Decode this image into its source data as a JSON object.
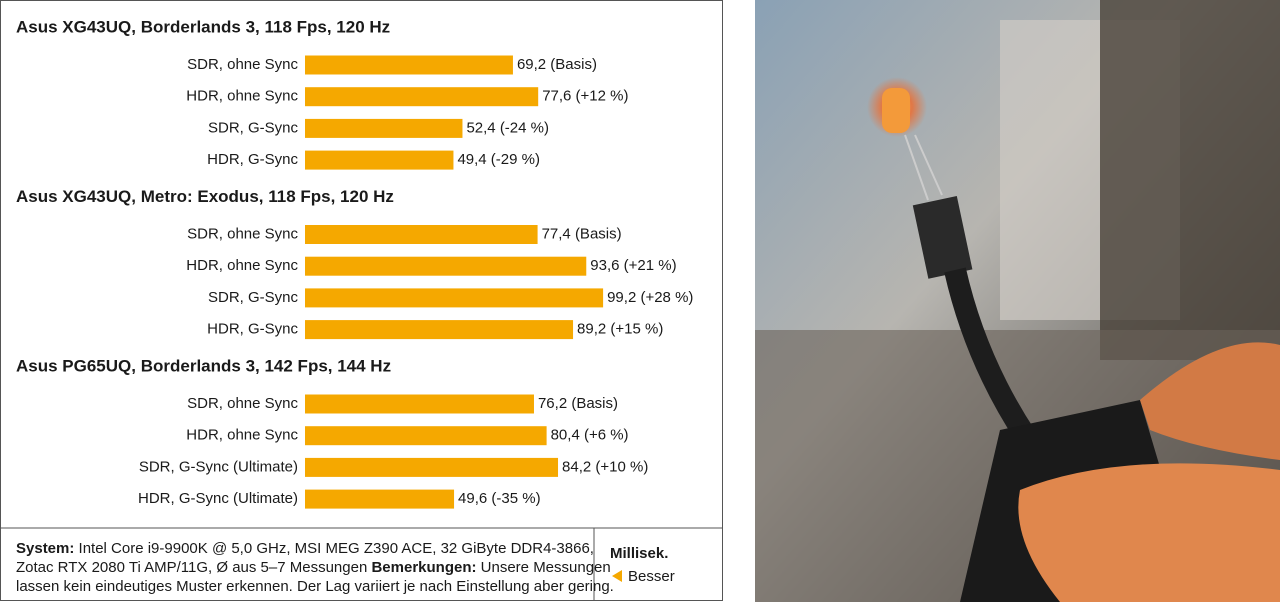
{
  "chart_data": [
    {
      "type": "bar",
      "title": "Asus XG43UQ, Borderlands 3, 118 Fps, 120 Hz",
      "color": "#f5a800",
      "categories": [
        "SDR, ohne Sync",
        "HDR, ohne Sync",
        "SDR, G-Sync",
        "HDR, G-Sync"
      ],
      "values": [
        69.2,
        77.6,
        52.4,
        49.4
      ],
      "value_labels": [
        "69,2 (Basis)",
        "77,6 (+12 %)",
        "52,4 (-24 %)",
        "49,4 (-29 %)"
      ]
    },
    {
      "type": "bar",
      "title": "Asus XG43UQ, Metro: Exodus, 118 Fps, 120 Hz",
      "color": "#f5a800",
      "categories": [
        "SDR, ohne Sync",
        "HDR, ohne Sync",
        "SDR, G-Sync",
        "HDR, G-Sync"
      ],
      "values": [
        77.4,
        93.6,
        99.2,
        89.2
      ],
      "value_labels": [
        "77,4 (Basis)",
        "93,6 (+21 %)",
        "99,2 (+28 %)",
        "89,2 (+15 %)"
      ]
    },
    {
      "type": "bar",
      "title": "Asus PG65UQ, Borderlands 3, 142 Fps, 144 Hz",
      "color": "#f5a800",
      "categories": [
        "SDR, ohne Sync",
        "HDR, ohne Sync",
        "SDR, G-Sync (Ultimate)",
        "HDR, G-Sync (Ultimate)"
      ],
      "values": [
        76.2,
        80.4,
        84.2,
        49.6
      ],
      "value_labels": [
        "76,2 (Basis)",
        "80,4 (+6 %)",
        "84,2 (+10 %)",
        "49,6 (-35 %)"
      ]
    }
  ],
  "footer": {
    "system_label": "System:",
    "line1": " Intel Core i9-9900K @ 5,0 GHz, MSI MEG Z390 ACE, 32 GiByte DDR4-3866,",
    "line2a": "Zotac RTX 2080 Ti AMP/11G, Ø aus 5–7 Messungen ",
    "remarks_label": "Bemerkungen:",
    "line2b": " Unsere Messungen",
    "line3": "lassen kein eindeutiges Muster erkennen. Der Lag variiert je nach Einstellung aber gering.",
    "unit": "Millisek.",
    "better": "Besser"
  }
}
